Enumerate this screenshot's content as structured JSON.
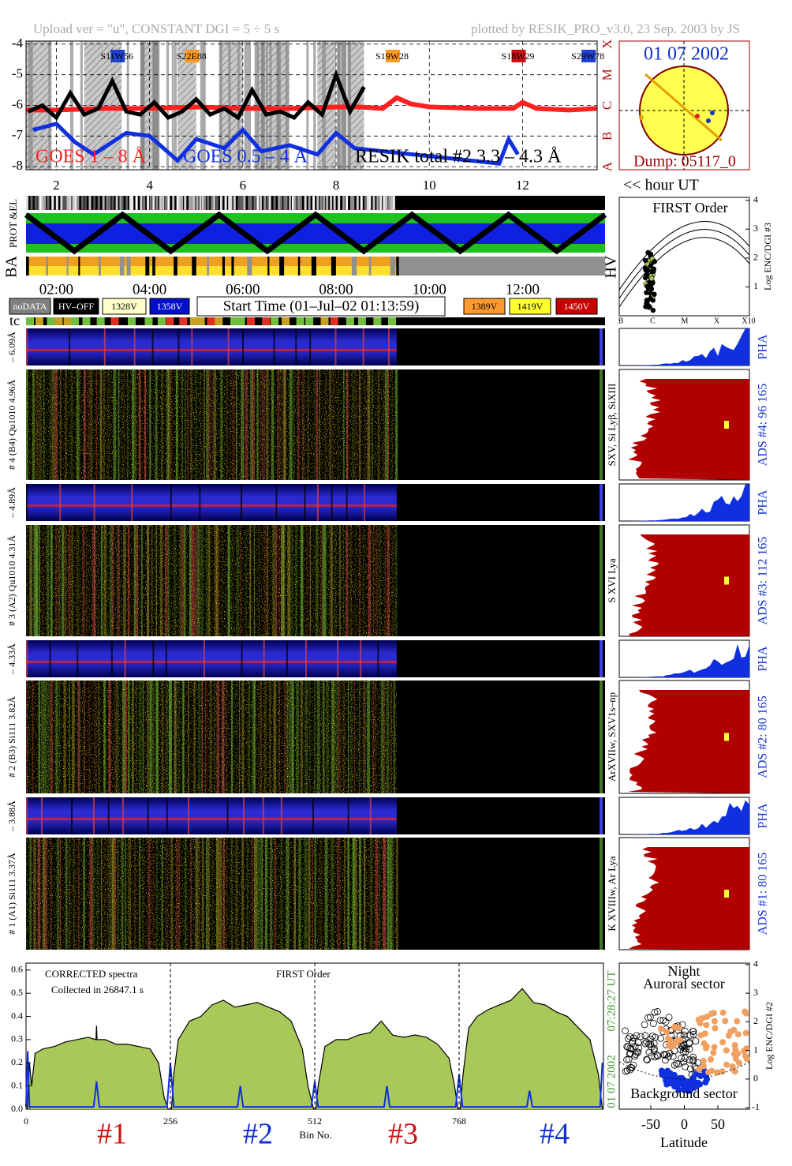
{
  "header": {
    "left": "Upload ver = \"u\", CONSTANT  DGI =   5 ÷   5 s",
    "right": "plotted by RESIK_PRO_v3.0, 23 Sep. 2003 by JS"
  },
  "goes_panel": {
    "xlim": [
      1.35,
      13.6
    ],
    "ylim": [
      -3.9,
      -8.1
    ],
    "xticks": [
      2,
      4,
      6,
      8,
      10,
      12
    ],
    "yticks": [
      -4,
      -5,
      -6,
      -7,
      -8
    ],
    "class_labels": [
      "X",
      "M",
      "C",
      "B",
      "A"
    ],
    "xlabel": "<< hour UT",
    "regions": [
      {
        "label": "S11W56",
        "color": "#2040d0"
      },
      {
        "label": "S22E88",
        "color": "#ff9a20"
      },
      {
        "label": "S19W28",
        "color": "#ff9a20"
      },
      {
        "label": "S18W29",
        "color": "#cc1010"
      },
      {
        "label": "S29W78",
        "color": "#2040d0"
      }
    ],
    "series": [
      {
        "name": "GOES 1 – 8 Å",
        "color": "#ff2020",
        "x": [
          1.35,
          2,
          3,
          4,
          5,
          6,
          7,
          8,
          8.5,
          9,
          9.3,
          9.6,
          10,
          11,
          11.8,
          12,
          12.3,
          13,
          13.6
        ],
        "values": [
          -6.15,
          -6.15,
          -6.1,
          -6.1,
          -6.05,
          -6.1,
          -6.1,
          -6.05,
          -6.05,
          -6.1,
          -5.75,
          -5.95,
          -6.05,
          -6.1,
          -6.1,
          -5.9,
          -6.1,
          -6.15,
          -6.1
        ]
      },
      {
        "name": "GOES 0.5 – 4 Å",
        "color": "#1030e0",
        "x": [
          1.5,
          2,
          2.4,
          2.8,
          3.2,
          3.5,
          4,
          4.6,
          5,
          5.6,
          6,
          6.4,
          7,
          7.6,
          8,
          8.4,
          11.5,
          11.7,
          11.9
        ],
        "values": [
          -6.8,
          -6.6,
          -7.2,
          -7.6,
          -7.2,
          -6.9,
          -7.0,
          -7.8,
          -7.1,
          -7.4,
          -6.8,
          -7.5,
          -7.3,
          -7.6,
          -6.9,
          -7.4,
          -7.9,
          -7.1,
          -7.6
        ]
      },
      {
        "name": "RESIK total #2  3.3 – 4.3 Å",
        "color": "#000000",
        "x": [
          1.4,
          1.7,
          2.0,
          2.3,
          2.6,
          2.9,
          3.2,
          3.5,
          3.8,
          4.1,
          4.4,
          4.7,
          5.0,
          5.3,
          5.6,
          5.9,
          6.2,
          6.5,
          6.8,
          7.1,
          7.4,
          7.7,
          8.0,
          8.3,
          8.6
        ],
        "values": [
          -6.2,
          -6.0,
          -6.4,
          -5.6,
          -6.3,
          -6.1,
          -5.2,
          -6.2,
          -6.3,
          -5.9,
          -6.4,
          -6.2,
          -5.8,
          -6.3,
          -6.1,
          -6.4,
          -5.5,
          -6.3,
          -6.2,
          -6.4,
          -5.9,
          -6.3,
          -5.0,
          -6.2,
          -5.4
        ]
      }
    ]
  },
  "sun": {
    "date": "01 07 2002",
    "dump": "Dump: 05117_0"
  },
  "status": {
    "prot": "PROT  &EL",
    "ba": "BA",
    "hv": "HV"
  },
  "time_axis": [
    {
      "value": 2,
      "label": "02:00"
    },
    {
      "value": 4,
      "label": "04:00"
    },
    {
      "value": 6,
      "label": "06:00"
    },
    {
      "value": 8,
      "label": "08:00"
    },
    {
      "value": 10,
      "label": "10:00"
    },
    {
      "value": 12,
      "label": "12:00"
    }
  ],
  "legend_boxes": [
    {
      "label": "noDATA",
      "color": "#808080"
    },
    {
      "label": "HV–OFF",
      "color": "#000000"
    },
    {
      "label": "1328V",
      "color": "#ffffc8"
    },
    {
      "label": "1358V",
      "color": "#0010c8"
    },
    {
      "label": "1389V",
      "color": "#ff9a30"
    },
    {
      "label": "1419V",
      "color": "#ffff30"
    },
    {
      "label": "1450V",
      "color": "#c80000"
    }
  ],
  "start_time": "Start Time (01–Jul–02 01:13:59)",
  "tc": "tc",
  "first_order_panel": {
    "title": "FIRST Order",
    "ylabel": "Log ENC/DGI #3",
    "ylim": [
      0,
      4.1
    ],
    "yticks": [
      1,
      2,
      3,
      4
    ],
    "categories": [
      "B",
      "C",
      "M",
      "X",
      "X10"
    ]
  },
  "channels": [
    {
      "pha_range": "– 6.09Å",
      "label": "# 4 (B4) Qu1010 4.96Å",
      "lines": "SXV, Si Lyβ, SiXIII",
      "ads": "ADS #4:   96 165",
      "pha": "PHA"
    },
    {
      "pha_range": "– 4.89Å",
      "label": "# 3 (A2) Qu1010  4.31Å",
      "lines": "S XVI Lya",
      "ads": "ADS #3:   112 165",
      "pha": "PHA"
    },
    {
      "pha_range": "– 4.33Å",
      "label": "# 2 (B3) Si111  3.82Å",
      "lines": "ArXVIIw, SXV1s–np",
      "ads": "ADS #2:   80 165",
      "pha": "PHA"
    },
    {
      "pha_range": "– 3.88Å",
      "label": "# 1 (A1) Si111  3.37Å",
      "lines": "K XVIIIw, Ar Lya",
      "ads": "ADS #1:   80 165",
      "pha": "PHA"
    }
  ],
  "chart_data": {
    "type": "area",
    "title": "CORRECTED spectra",
    "subtitle": "Collected in 26847.1 s",
    "order": "FIRST Order",
    "xlabel": "Bin No.",
    "xlim": [
      0,
      1024
    ],
    "ylim": [
      0,
      0.63
    ],
    "xticks": [
      0,
      256,
      512,
      768
    ],
    "yticks": [
      {
        "value": 0,
        "label": "0.0"
      },
      0.1,
      0.2,
      0.3,
      0.4,
      0.5,
      0.6
    ],
    "sector_labels": [
      "#1",
      "#2",
      "#3",
      "#4"
    ],
    "time": "07:28:27 UT",
    "date": "01 07 2002",
    "series": [
      {
        "color": "#a8c85a",
        "x": [
          2,
          6,
          10,
          16,
          30,
          50,
          70,
          90,
          110,
          124,
          125,
          126,
          140,
          160,
          180,
          200,
          220,
          235,
          245,
          252,
          258,
          262,
          270,
          290,
          310,
          330,
          350,
          370,
          390,
          410,
          430,
          450,
          470,
          490,
          500,
          510,
          514,
          518,
          530,
          550,
          570,
          590,
          610,
          630,
          650,
          670,
          690,
          710,
          730,
          750,
          760,
          766,
          770,
          775,
          785,
          800,
          820,
          840,
          860,
          880,
          900,
          920,
          940,
          960,
          980,
          1000,
          1015,
          1022
        ],
        "values": [
          0.0,
          0.2,
          0.1,
          0.24,
          0.26,
          0.27,
          0.29,
          0.3,
          0.31,
          0.3,
          0.36,
          0.3,
          0.3,
          0.28,
          0.28,
          0.27,
          0.26,
          0.2,
          0.05,
          0.0,
          0.0,
          0.15,
          0.3,
          0.38,
          0.4,
          0.45,
          0.47,
          0.44,
          0.45,
          0.46,
          0.44,
          0.42,
          0.38,
          0.26,
          0.1,
          0.0,
          0.0,
          0.1,
          0.27,
          0.3,
          0.3,
          0.32,
          0.33,
          0.38,
          0.32,
          0.31,
          0.32,
          0.31,
          0.28,
          0.22,
          0.1,
          0.0,
          0.0,
          0.15,
          0.35,
          0.4,
          0.43,
          0.45,
          0.47,
          0.52,
          0.46,
          0.45,
          0.42,
          0.4,
          0.35,
          0.3,
          0.15,
          0.0
        ]
      },
      {
        "color": "#1030e0",
        "x": [
          0,
          3,
          6,
          120,
          125,
          130,
          250,
          256,
          262,
          375,
          380,
          385,
          506,
          512,
          518,
          635,
          640,
          645,
          762,
          768,
          774,
          888,
          893,
          898,
          1018,
          1022
        ],
        "values": [
          0.01,
          0.25,
          0.01,
          0.01,
          0.12,
          0.01,
          0.01,
          0.2,
          0.01,
          0.01,
          0.1,
          0.01,
          0.01,
          0.12,
          0.01,
          0.01,
          0.1,
          0.01,
          0.01,
          0.15,
          0.01,
          0.01,
          0.08,
          0.01,
          0.01,
          0.2
        ]
      }
    ]
  },
  "latitude_panel": {
    "title": "Night",
    "top": "Auroral sector",
    "bottom": "Background sector",
    "xlabel": "Latitude",
    "ylabel": "Log ENC/DGI #2",
    "xlim": [
      -97,
      97
    ],
    "ylim": [
      -1.05,
      4.05
    ],
    "xticks": [
      -50,
      0,
      50
    ],
    "yticks": [
      -1,
      0,
      1,
      2,
      3,
      4
    ]
  }
}
